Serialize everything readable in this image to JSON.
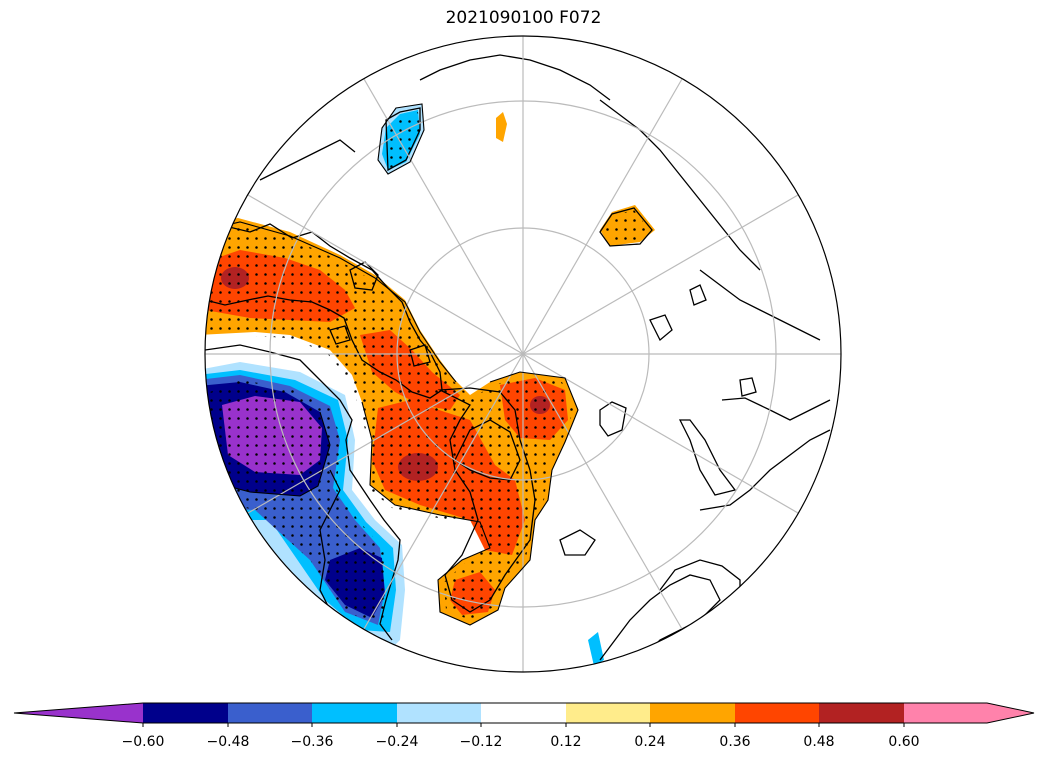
{
  "title": "2021090100 F072",
  "colorbar": {
    "ticks": [
      "−0.60",
      "−0.48",
      "−0.36",
      "−0.24",
      "−0.12",
      "0.12",
      "0.24",
      "0.36",
      "0.48",
      "0.60"
    ],
    "colors": [
      "#9932cc",
      "#00008b",
      "#3a5fcd",
      "#00bfff",
      "#b0e2ff",
      "#ffffff",
      "#ffec8b",
      "#ffa500",
      "#ff4500",
      "#b22222",
      "#ff82ab"
    ],
    "extend": "both"
  },
  "map": {
    "projection": "north-polar-stereographic",
    "graticule": true,
    "stippling": "significant regions",
    "colors": {
      "purple": "#9932cc",
      "navy": "#00008b",
      "royal": "#3a5fcd",
      "sky": "#00bfff",
      "pale_blue": "#b0e2ff",
      "pale_yellow": "#ffec8b",
      "orange": "#ffa500",
      "red_orange": "#ff4500",
      "dark_red": "#b22222",
      "grid": "#bbbbbb",
      "coast": "#000000"
    }
  }
}
